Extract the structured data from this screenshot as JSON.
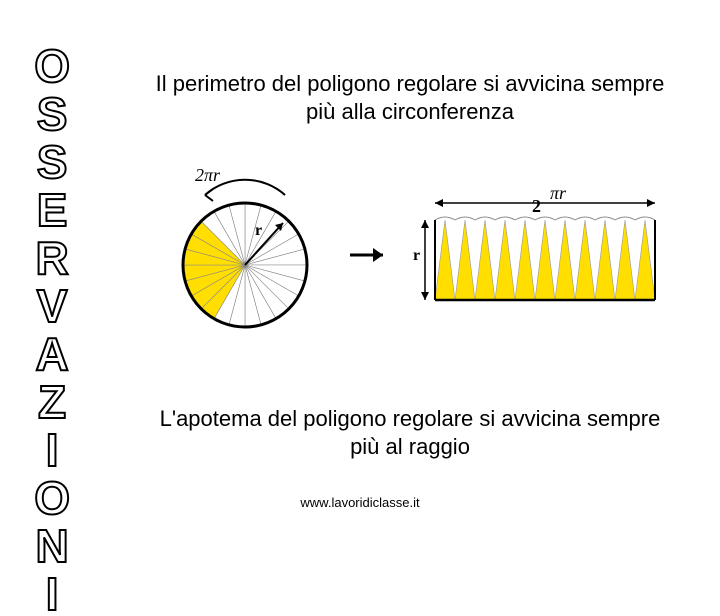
{
  "sidebar": {
    "title": "OSSERVAZIONI"
  },
  "content": {
    "top_text": "Il perimetro del poligono regolare si avvicina sempre più alla circonferenza",
    "bottom_text": "L'apotema del poligono regolare si avvicina sempre più al raggio",
    "url": "www.lavoridiclasse.it"
  },
  "diagram": {
    "circle": {
      "circumference_label": "2πr",
      "radius_label": "r",
      "sector_fill": "#ffde00",
      "outline": "#000000",
      "n_sectors": 24,
      "filled_start": 14,
      "filled_end": 20
    },
    "arrow_color": "#000000",
    "rect": {
      "width_label_prefix": "2",
      "width_label_suffix": "πr",
      "height_label": "r",
      "triangle_fill": "#ffde00",
      "n_triangles": 11
    }
  }
}
